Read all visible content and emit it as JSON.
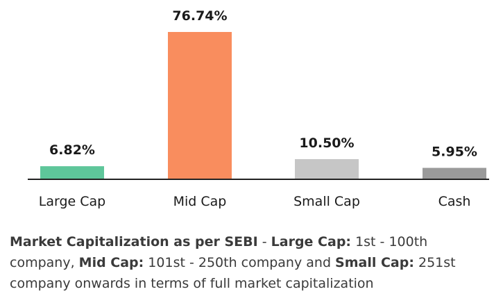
{
  "chart_data": {
    "type": "bar",
    "categories": [
      "Large Cap",
      "Mid Cap",
      "Small Cap",
      "Cash"
    ],
    "values": [
      6.82,
      76.74,
      10.5,
      5.95
    ],
    "value_labels": [
      "6.82%",
      "76.74%",
      "10.50%",
      "5.95%"
    ],
    "colors": [
      "#5ec69a",
      "#f98d5e",
      "#c6c6c6",
      "#9a9a9a"
    ],
    "title": "",
    "xlabel": "",
    "ylabel": "",
    "ylim": [
      0,
      80
    ],
    "grid": false,
    "legend": "none"
  },
  "footnote": {
    "part1_bold": "Market Capitalization as per SEBI",
    "part2": " - ",
    "part3_bold": "Large Cap:",
    "part4": " 1st - 100th company, ",
    "part5_bold": "Mid Cap:",
    "part6": " 101st - 250th company and ",
    "part7_bold": "Small Cap:",
    "part8": " 251st company onwards in terms of full market capitalization"
  }
}
